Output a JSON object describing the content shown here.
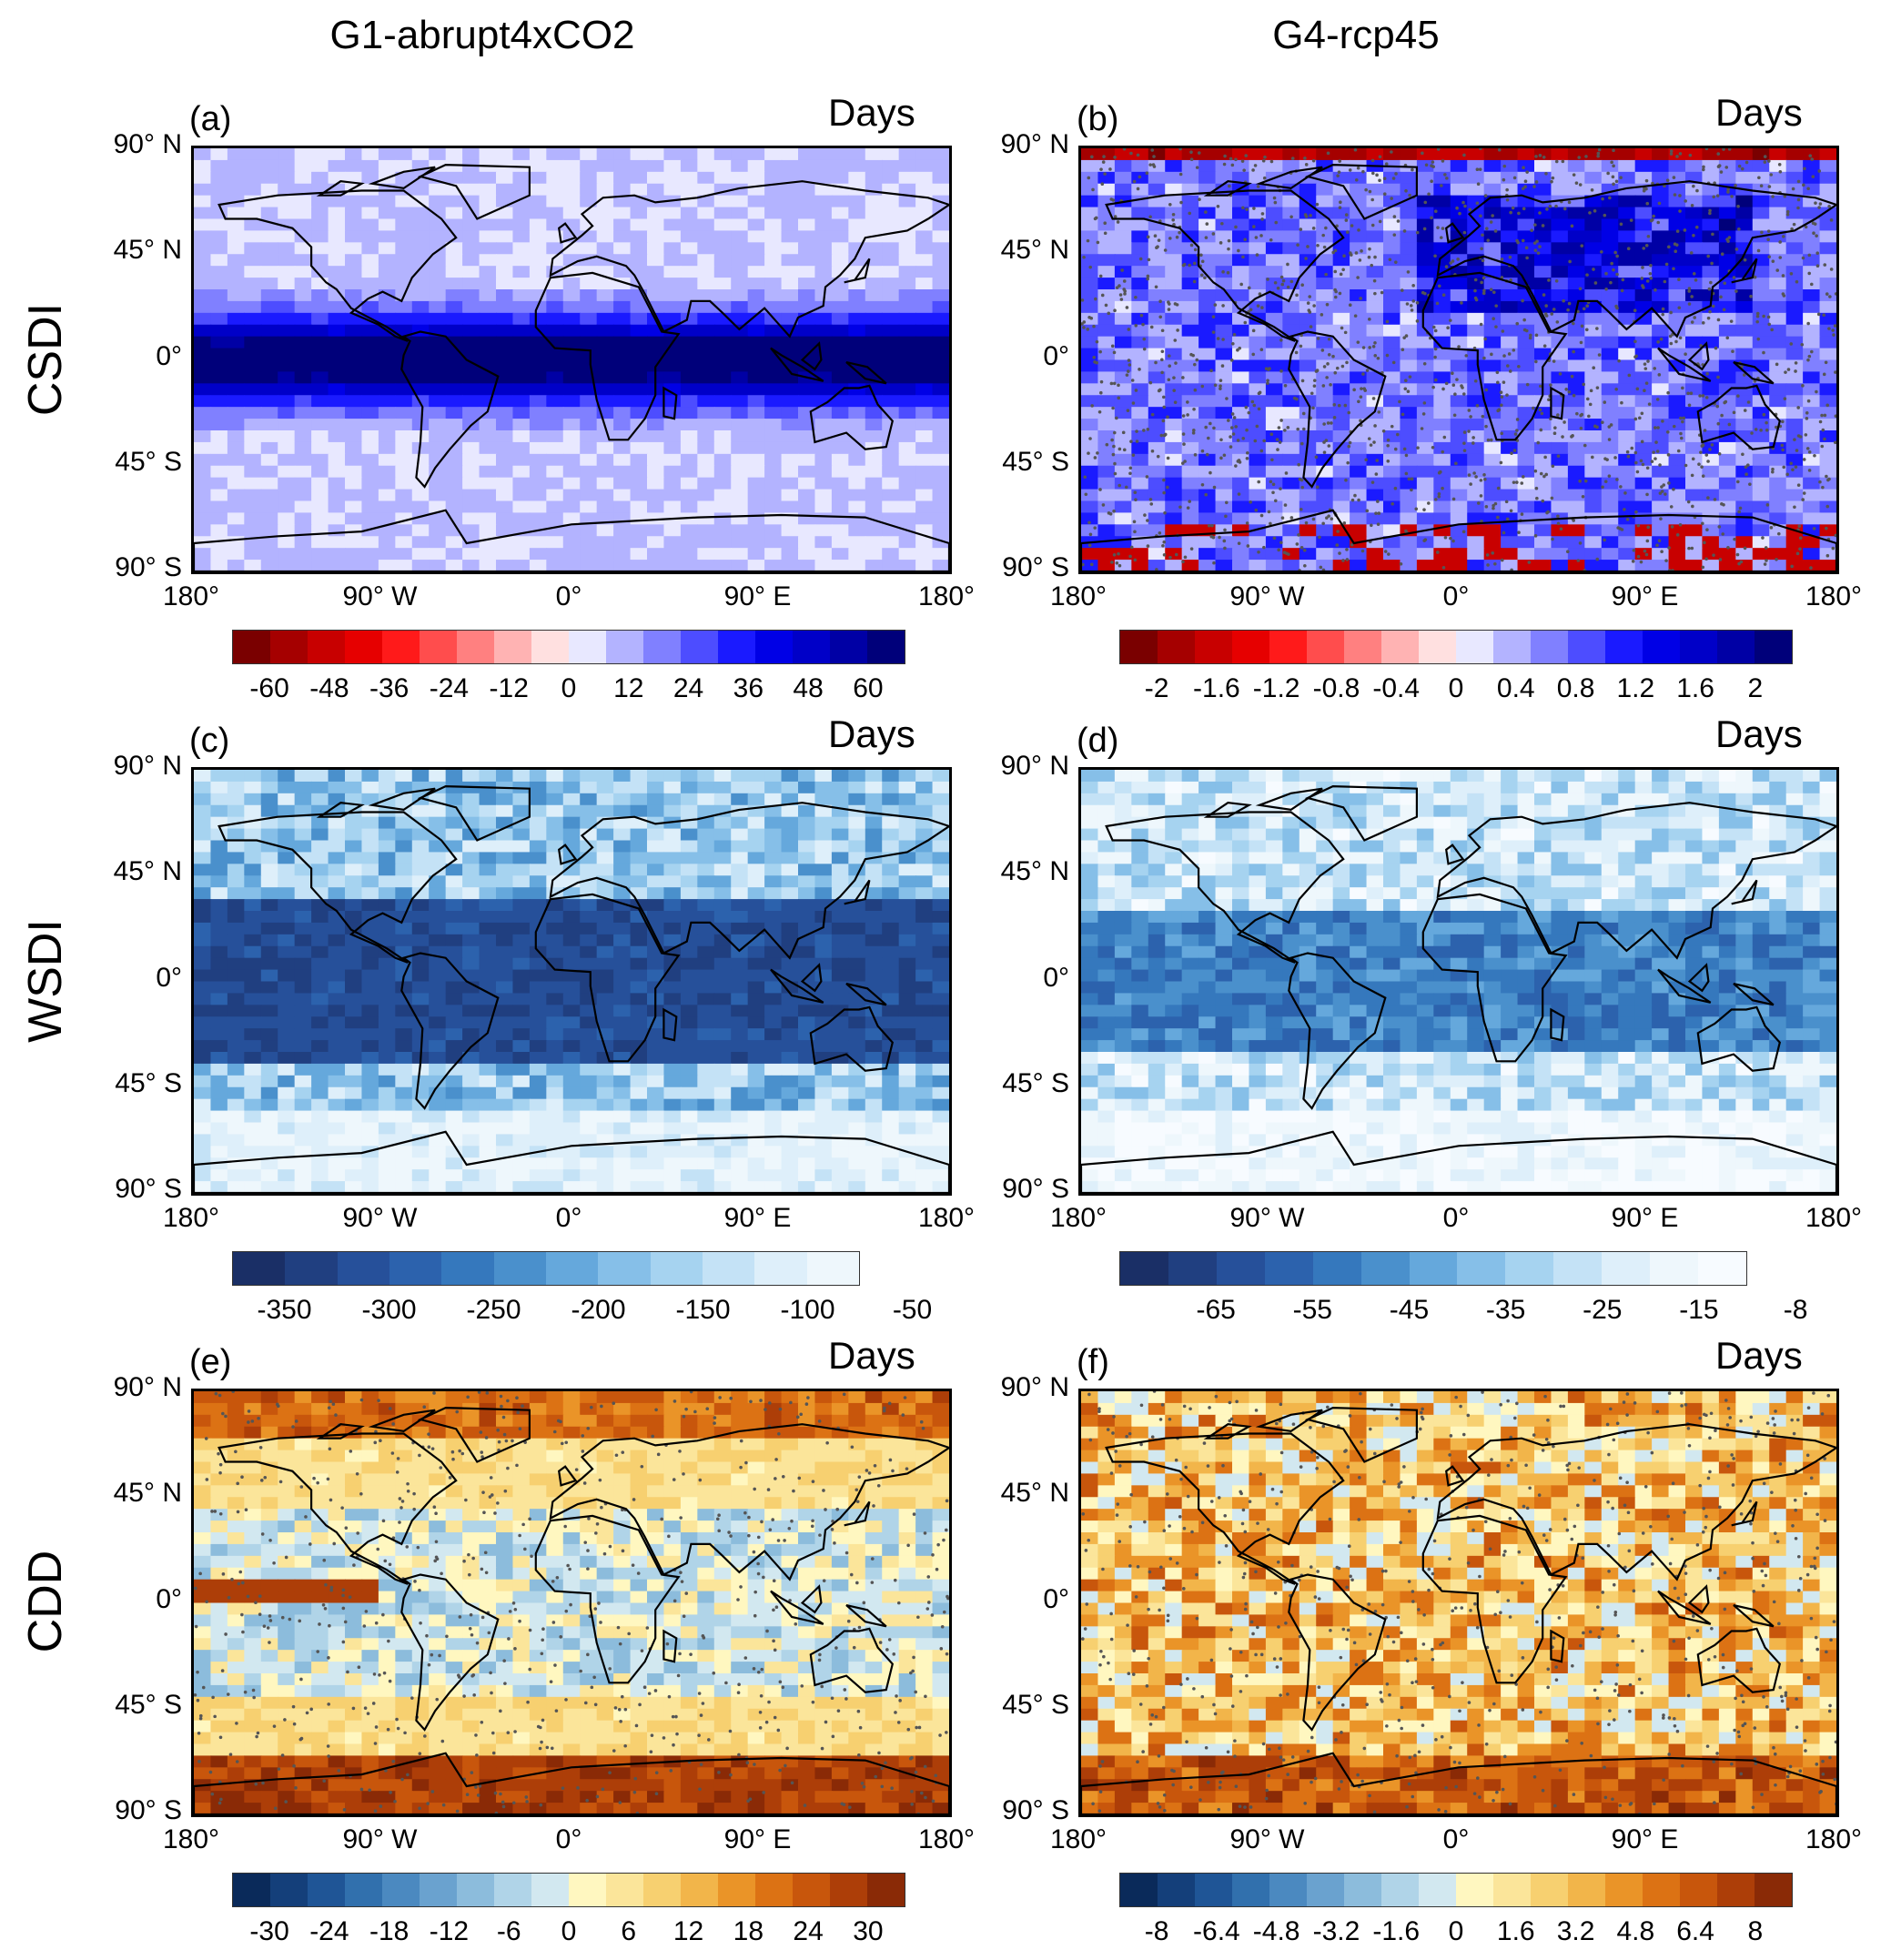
{
  "columns": [
    "G1-abrupt4xCO2",
    "G4-rcp45"
  ],
  "rows": [
    "CSDI",
    "WSDI",
    "CDD"
  ],
  "axis": {
    "lat_labels": [
      "90° N",
      "45° N",
      "0°",
      "45° S",
      "90° S"
    ],
    "lon_labels": [
      "180°",
      "90° W",
      "0°",
      "90° E",
      "180°"
    ]
  },
  "panels": [
    {
      "label": "(a)",
      "units": "Days",
      "variable": "CSDI",
      "experiment": "G1-abrupt4xCO2",
      "colorbar": {
        "ticks": [
          "-60",
          "-48",
          "-36",
          "-24",
          "-12",
          "0",
          "12",
          "24",
          "36",
          "48",
          "60"
        ],
        "colors": [
          "#7a0000",
          "#a50000",
          "#c80000",
          "#e60000",
          "#ff1a1a",
          "#ff4d4d",
          "#ff8080",
          "#ffb3b3",
          "#ffe0e0",
          "#e8e8ff",
          "#b3b3ff",
          "#8080ff",
          "#4d4dff",
          "#1a1aff",
          "#0000e6",
          "#0000c8",
          "#0000a5",
          "#00007a"
        ]
      },
      "palette": "redblue"
    },
    {
      "label": "(b)",
      "units": "Days",
      "variable": "CSDI",
      "experiment": "G4-rcp45",
      "colorbar": {
        "ticks": [
          "-2",
          "-1.6",
          "-1.2",
          "-0.8",
          "-0.4",
          "0",
          "0.4",
          "0.8",
          "1.2",
          "1.6",
          "2"
        ],
        "colors": [
          "#7a0000",
          "#a50000",
          "#c80000",
          "#e60000",
          "#ff1a1a",
          "#ff4d4d",
          "#ff8080",
          "#ffb3b3",
          "#ffe0e0",
          "#e8e8ff",
          "#b3b3ff",
          "#8080ff",
          "#4d4dff",
          "#1a1aff",
          "#0000e6",
          "#0000c8",
          "#0000a5",
          "#00007a"
        ]
      },
      "palette": "redblue"
    },
    {
      "label": "(c)",
      "units": "Days",
      "variable": "WSDI",
      "experiment": "G1-abrupt4xCO2",
      "colorbar": {
        "ticks": [
          "-350",
          "-300",
          "-250",
          "-200",
          "-150",
          "-100",
          "-50"
        ],
        "colors": [
          "#1a2f66",
          "#203f80",
          "#26509a",
          "#2c62ad",
          "#3578bd",
          "#4a90cc",
          "#65a8dc",
          "#86bfe8",
          "#a6d3f0",
          "#c4e2f6",
          "#deeffa",
          "#eef7fc"
        ]
      },
      "palette": "blues"
    },
    {
      "label": "(d)",
      "units": "Days",
      "variable": "WSDI",
      "experiment": "G4-rcp45",
      "colorbar": {
        "ticks": [
          "-65",
          "-55",
          "-45",
          "-35",
          "-25",
          "-15",
          "-8"
        ],
        "colors": [
          "#1a2f66",
          "#203f80",
          "#26509a",
          "#2c62ad",
          "#3578bd",
          "#4a90cc",
          "#65a8dc",
          "#86bfe8",
          "#a6d3f0",
          "#c4e2f6",
          "#deeffa",
          "#eef7fc",
          "#f7fbff"
        ]
      },
      "palette": "blues"
    },
    {
      "label": "(e)",
      "units": "Days",
      "variable": "CDD",
      "experiment": "G1-abrupt4xCO2",
      "colorbar": {
        "ticks": [
          "-30",
          "-24",
          "-18",
          "-12",
          "-6",
          "0",
          "6",
          "12",
          "18",
          "24",
          "30"
        ],
        "colors": [
          "#0a2a5a",
          "#143f7a",
          "#1f5596",
          "#3170ad",
          "#4b89c0",
          "#6aa2cf",
          "#8cbcdc",
          "#b0d4e8",
          "#d2e8f0",
          "#fff7c0",
          "#fbe59a",
          "#f7d070",
          "#f2b54a",
          "#ea9428",
          "#dc7214",
          "#c8560c",
          "#ad3e08",
          "#8a2a06"
        ]
      },
      "palette": "brownblue"
    },
    {
      "label": "(f)",
      "units": "Days",
      "variable": "CDD",
      "experiment": "G4-rcp45",
      "colorbar": {
        "ticks": [
          "-8",
          "-6.4",
          "-4.8",
          "-3.2",
          "-1.6",
          "0",
          "1.6",
          "3.2",
          "4.8",
          "6.4",
          "8"
        ],
        "colors": [
          "#0a2a5a",
          "#143f7a",
          "#1f5596",
          "#3170ad",
          "#4b89c0",
          "#6aa2cf",
          "#8cbcdc",
          "#b0d4e8",
          "#d2e8f0",
          "#fff7c0",
          "#fbe59a",
          "#f7d070",
          "#f2b54a",
          "#ea9428",
          "#dc7214",
          "#c8560c",
          "#ad3e08",
          "#8a2a06"
        ]
      },
      "palette": "brownblue"
    }
  ]
}
